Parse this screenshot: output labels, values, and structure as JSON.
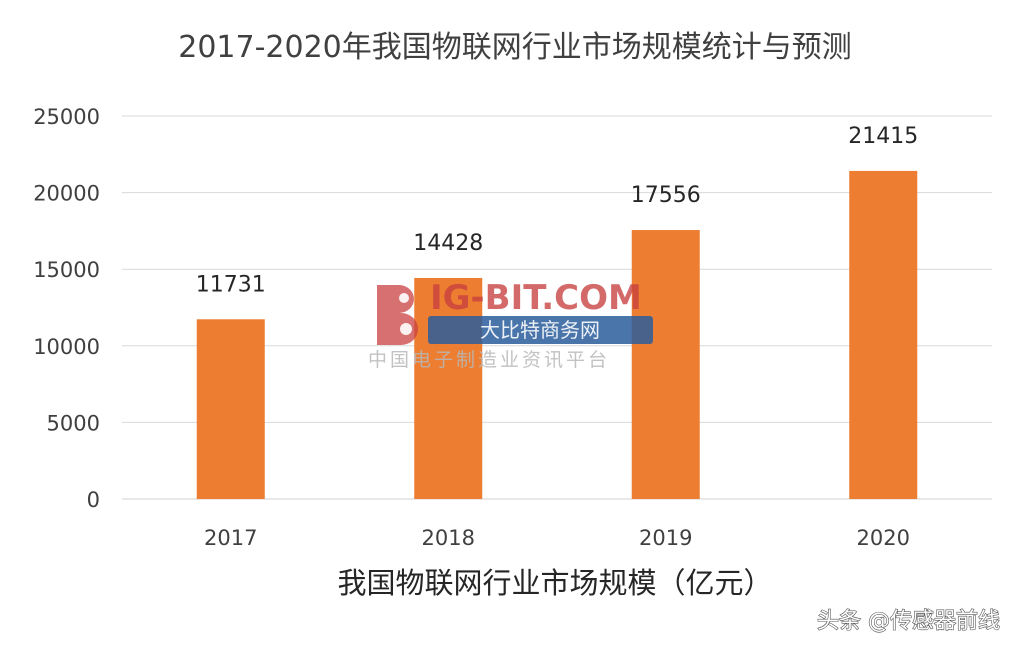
{
  "chart_data": {
    "type": "bar",
    "title": "2017-2020年我国物联网行业市场规模统计与预测",
    "categories": [
      "2017",
      "2018",
      "2019",
      "2020"
    ],
    "series": [
      {
        "values": [
          11731,
          14428,
          17556,
          21415
        ],
        "color": "#ed7d31"
      }
    ],
    "xlabel": "我国物联网行业市场规模（亿元）",
    "ylabel": "",
    "ylim": [
      0,
      25000
    ],
    "yticks": [
      0,
      5000,
      10000,
      15000,
      20000,
      25000
    ],
    "ytick_labels": [
      "0",
      "5000",
      "10000",
      "15000",
      "20000",
      "25000"
    ],
    "data_labels": [
      "11731",
      "14428",
      "17556",
      "21415"
    ],
    "grid": true,
    "legend": "none"
  },
  "watermark": {
    "logo_text": "IG-BIT.COM",
    "logo_subtext": "大比特商务网",
    "tagline": "中国电子制造业资讯平台",
    "accent_color": "#c94040"
  },
  "footer": {
    "credit": "头条 @传感器前线"
  }
}
